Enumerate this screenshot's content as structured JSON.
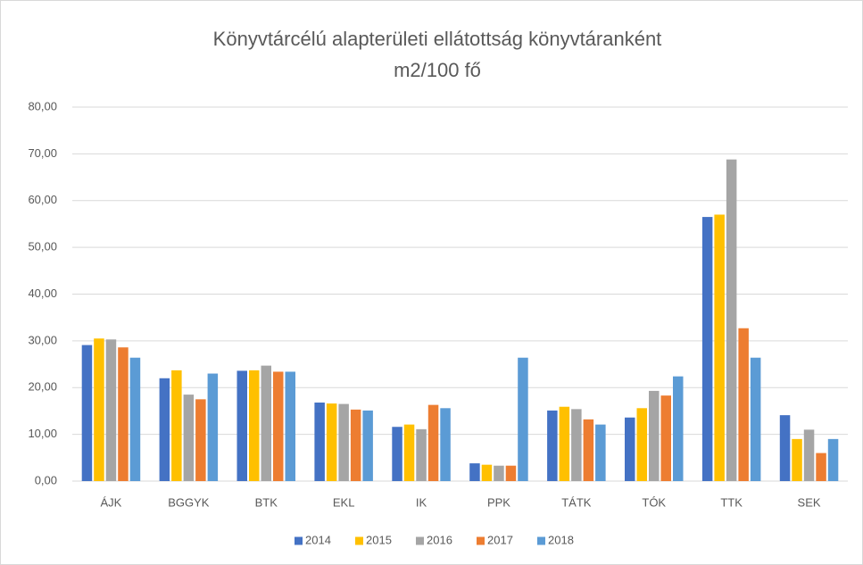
{
  "chart_data": {
    "type": "bar",
    "title": [
      "Könyvtárcélú alapterületi ellátottság könyvtáranként",
      "m2/100 fő"
    ],
    "categories": [
      "ÁJK",
      "BGGYK",
      "BTK",
      "EKL",
      "IK",
      "PPK",
      "TÁTK",
      "TÓK",
      "TTK",
      "SEK"
    ],
    "series": [
      {
        "name": "2014",
        "color": "#4472c4",
        "values": [
          29.1,
          22.0,
          23.6,
          16.8,
          11.6,
          3.8,
          15.1,
          13.6,
          56.5,
          14.1
        ]
      },
      {
        "name": "2015",
        "color": "#ffc000",
        "values": [
          30.5,
          23.7,
          23.7,
          16.6,
          12.1,
          3.5,
          15.9,
          15.6,
          57.0,
          9.0
        ]
      },
      {
        "name": "2016",
        "color": "#a5a5a5",
        "values": [
          30.3,
          18.5,
          24.7,
          16.5,
          11.1,
          3.3,
          15.4,
          19.3,
          68.8,
          11.0
        ]
      },
      {
        "name": "2017",
        "color": "#ed7d31",
        "values": [
          28.6,
          17.5,
          23.4,
          15.3,
          16.3,
          3.3,
          13.2,
          18.3,
          32.7,
          6.0
        ]
      },
      {
        "name": "2018",
        "color": "#5b9bd5",
        "values": [
          26.4,
          23.0,
          23.4,
          15.1,
          15.6,
          26.4,
          12.1,
          22.4,
          26.4,
          9.0
        ]
      }
    ],
    "ylim": [
      0,
      80
    ],
    "yticks": [
      {
        "value": 0,
        "label": "0,00"
      },
      {
        "value": 10,
        "label": "10,00"
      },
      {
        "value": 20,
        "label": "20,00"
      },
      {
        "value": 30,
        "label": "30,00"
      },
      {
        "value": 40,
        "label": "40,00"
      },
      {
        "value": 50,
        "label": "50,00"
      },
      {
        "value": 60,
        "label": "60,00"
      },
      {
        "value": 70,
        "label": "70,00"
      },
      {
        "value": 80,
        "label": "80,00"
      }
    ],
    "grid": true,
    "legend": "bottom"
  }
}
